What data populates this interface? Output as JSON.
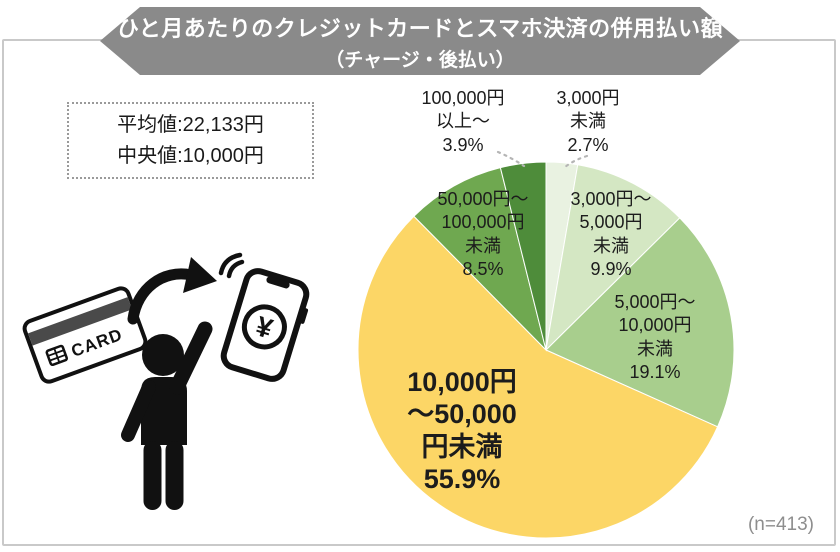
{
  "banner": {
    "title_line1": "ひと月あたりのクレジットカードとスマホ決済の併用払い額",
    "title_line2": "（チャージ・後払い）"
  },
  "stats": {
    "average_label": "平均値:22,133円",
    "median_label": "中央値:10,000円"
  },
  "footnote": "(n=413)",
  "illustration": {
    "card_text": "CARD",
    "yen_symbol": "¥"
  },
  "colors": {
    "banner_gray": "#8a8a8a",
    "frame_gray": "#c9c9c9",
    "leader_gray": "#b5b5b5"
  },
  "chart_data": {
    "type": "pie",
    "title": "ひと月あたりのクレジットカードとスマホ決済の併用払い額（チャージ・後払い）",
    "sample_size_label": "(n=413)",
    "average_value_yen": 22133,
    "median_value_yen": 10000,
    "start_angle_deg": 0,
    "direction": "clockwise",
    "categories": [
      "3,000円未満",
      "3,000円～5,000円未満",
      "5,000円～10,000円未満",
      "10,000円～50,000円未満",
      "50,000円～100,000円未満",
      "100,000円以上～"
    ],
    "values": [
      2.7,
      9.9,
      19.1,
      55.9,
      8.5,
      3.9
    ],
    "colors": [
      "#e9f2e1",
      "#d4e7c3",
      "#a8ce8d",
      "#fcd666",
      "#6fa850",
      "#4e8c3a"
    ],
    "labels": [
      {
        "text": "3,000円\n未満\n2.7%"
      },
      {
        "text": "3,000円～\n5,000円\n未満\n9.9%"
      },
      {
        "text": "5,000円～\n10,000円\n未満\n19.1%"
      },
      {
        "text": "10,000円\n～50,000\n円未満\n55.9%"
      },
      {
        "text": "50,000円～\n100,000円\n未満\n8.5%"
      },
      {
        "text": "100,000円\n以上～\n3.9%"
      }
    ]
  }
}
